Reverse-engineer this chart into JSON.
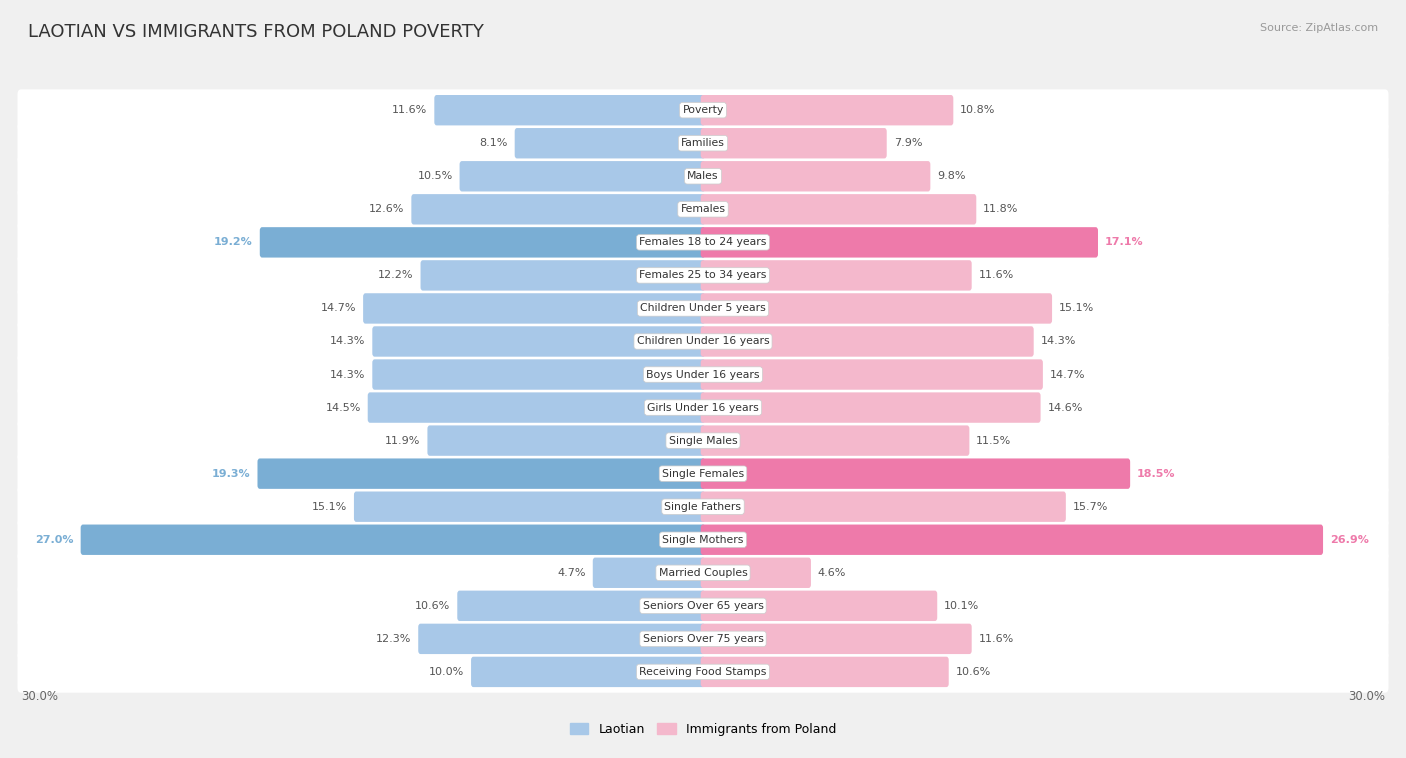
{
  "title": "LAOTIAN VS IMMIGRANTS FROM POLAND POVERTY",
  "source": "Source: ZipAtlas.com",
  "categories": [
    "Poverty",
    "Families",
    "Males",
    "Females",
    "Females 18 to 24 years",
    "Females 25 to 34 years",
    "Children Under 5 years",
    "Children Under 16 years",
    "Boys Under 16 years",
    "Girls Under 16 years",
    "Single Males",
    "Single Females",
    "Single Fathers",
    "Single Mothers",
    "Married Couples",
    "Seniors Over 65 years",
    "Seniors Over 75 years",
    "Receiving Food Stamps"
  ],
  "laotian": [
    11.6,
    8.1,
    10.5,
    12.6,
    19.2,
    12.2,
    14.7,
    14.3,
    14.3,
    14.5,
    11.9,
    19.3,
    15.1,
    27.0,
    4.7,
    10.6,
    12.3,
    10.0
  ],
  "poland": [
    10.8,
    7.9,
    9.8,
    11.8,
    17.1,
    11.6,
    15.1,
    14.3,
    14.7,
    14.6,
    11.5,
    18.5,
    15.7,
    26.9,
    4.6,
    10.1,
    11.6,
    10.6
  ],
  "blue_normal": "#a8c8e8",
  "pink_normal": "#f4b8cc",
  "blue_highlight": "#7aaed4",
  "pink_highlight": "#ee7aaa",
  "row_bg_color": "#e8e8e8",
  "background_color": "#f0f0f0",
  "max_val": 30.0,
  "legend_label_left": "Laotian",
  "legend_label_right": "Immigrants from Poland",
  "axis_label_left": "30.0%",
  "axis_label_right": "30.0%",
  "highlight_indices": [
    4,
    11,
    13
  ]
}
